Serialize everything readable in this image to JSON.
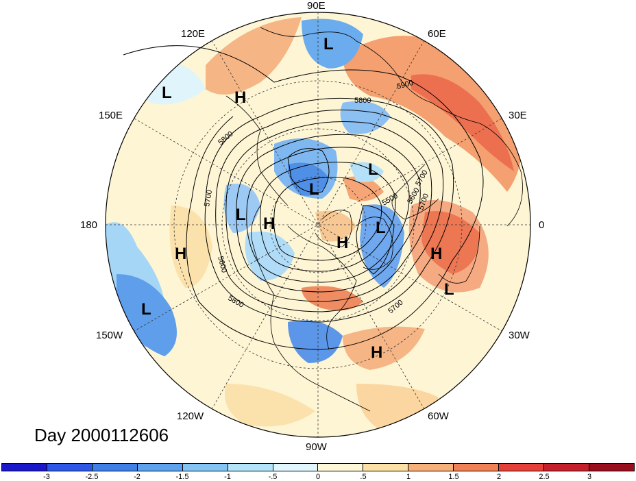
{
  "title": "Day 2000112606",
  "longitude_labels": {
    "e90": "90E",
    "e60": "60E",
    "e30": "30E",
    "zero": "0",
    "w30": "30W",
    "w60": "60W",
    "w90": "90W",
    "w120": "120W",
    "w150": "150W",
    "d180": "180",
    "e150": "150E",
    "e120": "120E"
  },
  "contour_labels": [
    "5900",
    "5800",
    "5800",
    "5800",
    "5700",
    "5700",
    "5600",
    "5500",
    "5600",
    "5700",
    "5700"
  ],
  "pressure_centers": [
    {
      "label": "L",
      "region": "Siberia north"
    },
    {
      "label": "H",
      "region": "Far East"
    },
    {
      "label": "L",
      "region": "North Pacific west"
    },
    {
      "label": "L",
      "region": "Arctic Siberia"
    },
    {
      "label": "L",
      "region": "Arctic Barents"
    },
    {
      "label": "L",
      "region": "Beaufort"
    },
    {
      "label": "H",
      "region": "Arctic Alaska"
    },
    {
      "label": "H",
      "region": "Greenland"
    },
    {
      "label": "L",
      "region": "Norwegian Sea"
    },
    {
      "label": "H",
      "region": "Northwest Africa"
    },
    {
      "label": "L",
      "region": "Eastern Atlantic"
    },
    {
      "label": "H",
      "region": "Central Pacific"
    },
    {
      "label": "L",
      "region": "Northeast Pacific"
    },
    {
      "label": "H",
      "region": "Western Atlantic"
    }
  ],
  "colorbar": {
    "ticks": [
      "-3",
      "-2.5",
      "-2",
      "-1.5",
      "-1",
      "-.5",
      "0",
      ".5",
      "1",
      "1.5",
      "2",
      "2.5",
      "3"
    ],
    "colors": [
      "#1a18c8",
      "#2f57e6",
      "#3e7fe8",
      "#5ea2ee",
      "#84c4f4",
      "#b4e4fa",
      "#e2f6fd",
      "#fdf8d8",
      "#fbe1a6",
      "#f6b079",
      "#f08055",
      "#e4403a",
      "#c4202a",
      "#9a0f1e"
    ]
  }
}
